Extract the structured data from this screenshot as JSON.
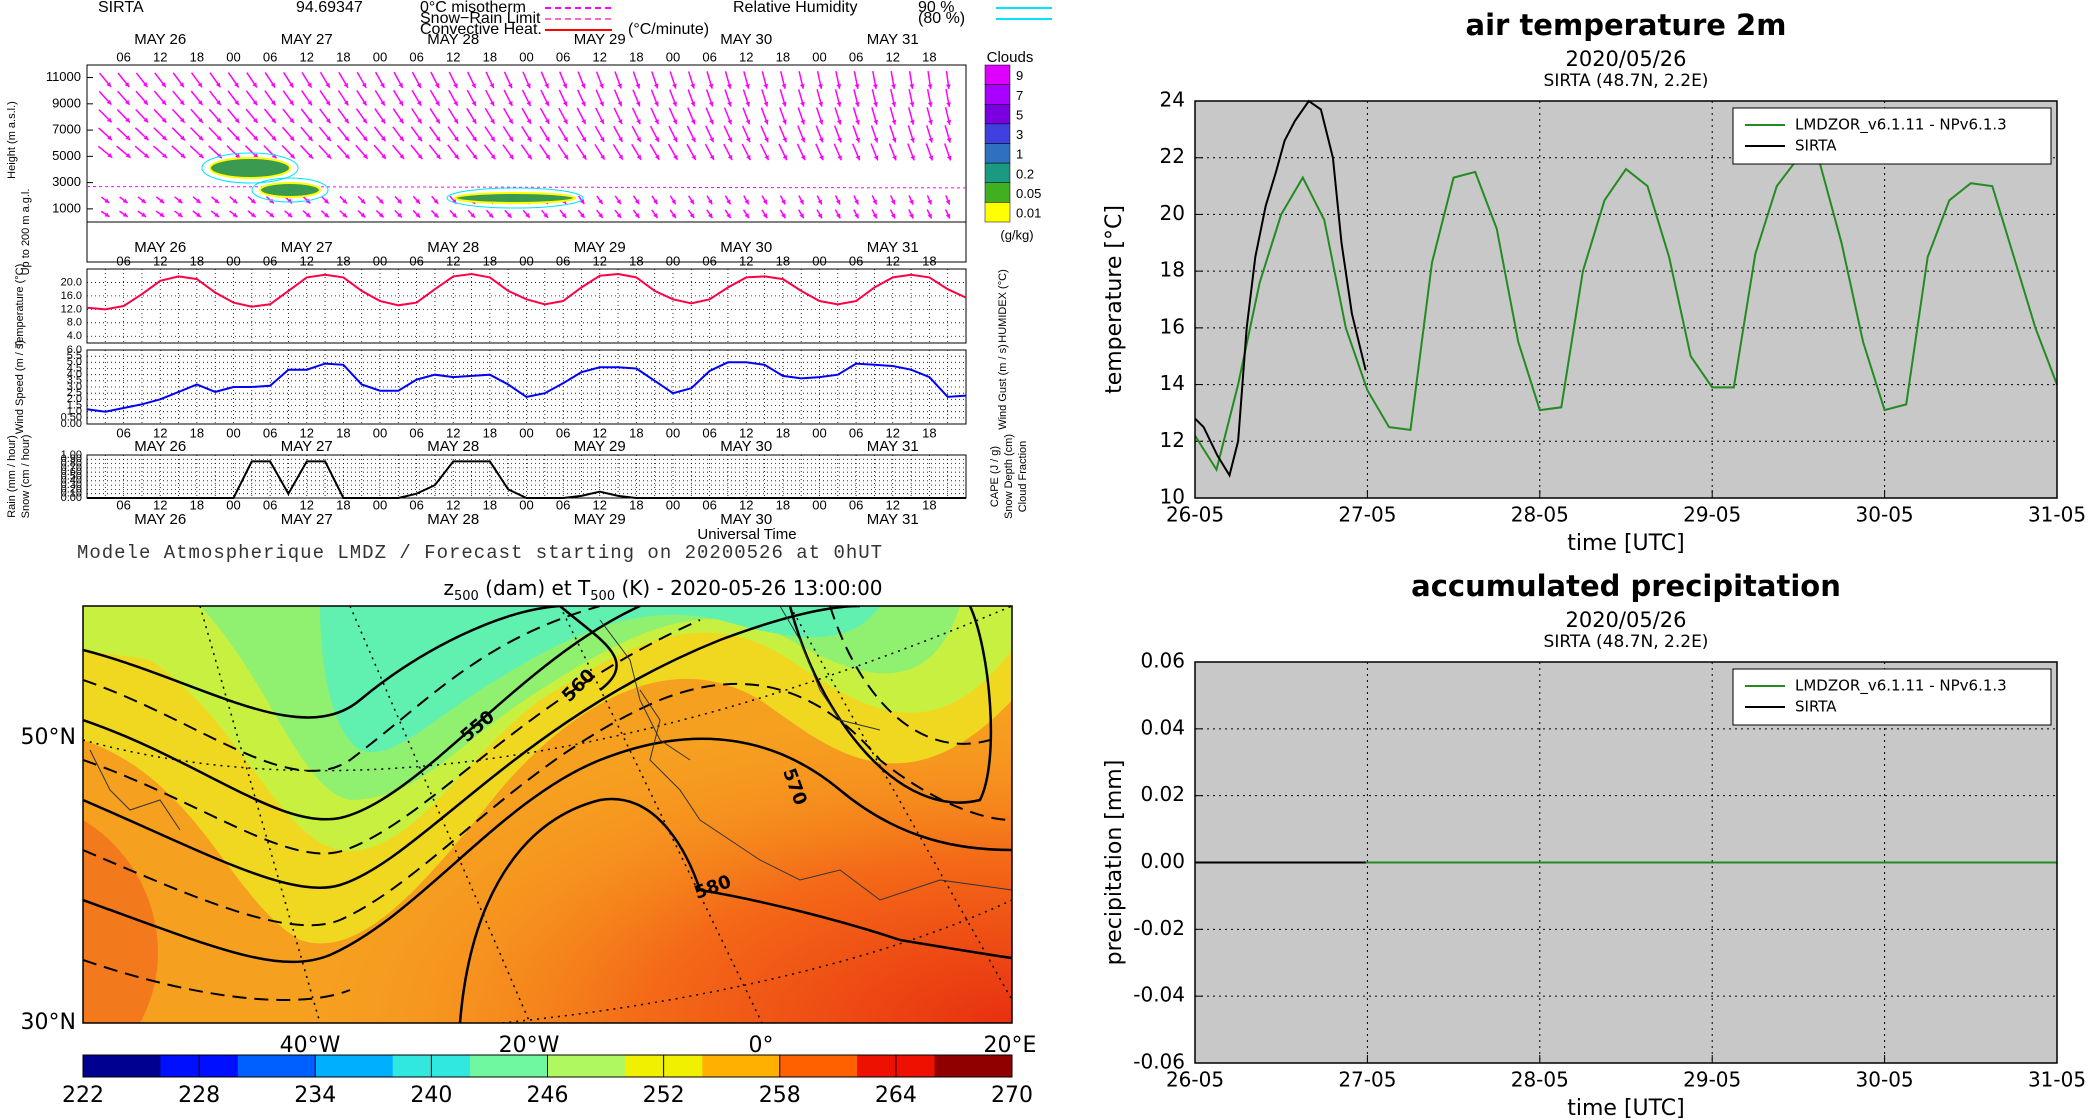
{
  "chart_data": [
    {
      "type": "meteogram",
      "station": "SIRTA",
      "station_value": "94.69347",
      "legend": [
        {
          "name": "0°C misotherm",
          "color": "#ff00ff"
        },
        {
          "name": "Snow−Rain Limit",
          "color": "#ff66cc"
        },
        {
          "name": "Convective Heat.",
          "color": "#ff0000",
          "unit": "(°C/minute)"
        }
      ],
      "humidity_legend": {
        "name": "Relative Humidity",
        "color": "#00e5ff",
        "levels": [
          "90 %",
          "(80 %)"
        ]
      },
      "days": [
        "MAY 26",
        "MAY 27",
        "MAY 28",
        "MAY 29",
        "MAY 30",
        "MAY 31"
      ],
      "hours": [
        "06",
        "12",
        "18",
        "00"
      ],
      "height_panel": {
        "left_labels": [
          {
            "text": "Height (m a.s.l.)",
            "color": "#000"
          },
          {
            "text": "Up to 200 m a.g.l.",
            "color": "#000"
          }
        ],
        "ylim": [
          0,
          11500
        ],
        "yticks": [
          1000,
          3000,
          5000,
          7000,
          9000,
          11000
        ]
      },
      "cloud_scale": {
        "title": "Clouds",
        "labels": [
          "9",
          "7",
          "5",
          "3",
          "1",
          "0.2",
          "0.05",
          "0.01"
        ],
        "colors": [
          "#dd00ff",
          "#aa00ff",
          "#7a00e0",
          "#4040e0",
          "#3070c0",
          "#1a9a80",
          "#40b020",
          "#ffff00"
        ],
        "unit": "(g/kg)"
      },
      "temperature_panel": {
        "left_labels": [
          {
            "text": "Temperature (°C)",
            "color": "#ff0000"
          }
        ],
        "right_labels": [
          {
            "text": "HUMIDEX (°C)",
            "color": "#ff00ff"
          }
        ],
        "ylim": [
          2,
          24
        ],
        "yticks": [
          {
            "value": 4,
            "label": "4.0"
          },
          {
            "value": 8,
            "label": "8.0"
          },
          {
            "value": 12,
            "label": "12.0"
          },
          {
            "value": 16,
            "label": "16.0"
          },
          {
            "value": 20,
            "label": "20.0"
          }
        ],
        "series": [
          {
            "color": "#ff0044",
            "values": [
              12.5,
              12.0,
              13,
              16.5,
              20.5,
              21.8,
              21,
              17,
              14,
              12.8,
              13.5,
              17.5,
              21.5,
              22.3,
              21.5,
              17.5,
              14.5,
              13.2,
              14,
              18,
              21.8,
              22.5,
              21.5,
              17.5,
              15,
              13.5,
              14.5,
              18.5,
              22,
              22.5,
              21.5,
              17.5,
              15,
              13.8,
              15,
              18.5,
              21.5,
              21.8,
              21,
              17.5,
              14.5,
              13.5,
              14.5,
              18.5,
              21.5,
              22.3,
              21.5,
              18,
              15.5
            ]
          }
        ]
      },
      "wind_panel": {
        "left_labels": [
          {
            "text": "Wind Speed (m / s)",
            "color": "#0000ff"
          }
        ],
        "right_labels": [
          {
            "text": "Wind Gust (m / s)",
            "color": "#ff00ff"
          }
        ],
        "ylim": [
          0,
          6
        ],
        "yticks": [
          {
            "value": 0,
            "label": "0.00"
          },
          {
            "value": 0.5,
            "label": "0.50"
          },
          {
            "value": 1,
            "label": "1.0"
          },
          1.5,
          {
            "value": 2,
            "label": "2.0"
          },
          2.5,
          {
            "value": 3,
            "label": "3.0"
          },
          3.5,
          {
            "value": 4,
            "label": "4.0"
          },
          4.5,
          {
            "value": 5,
            "label": "5.0"
          },
          5.5,
          {
            "value": 6,
            "label": "6.0"
          }
        ],
        "series": [
          {
            "color": "#0000ff",
            "values": [
              1.2,
              1.0,
              1.3,
              1.6,
              2.0,
              2.6,
              3.2,
              2.6,
              3.0,
              3.0,
              3.1,
              4.4,
              4.4,
              4.9,
              4.8,
              3.2,
              2.7,
              2.7,
              3.6,
              4.0,
              3.8,
              3.9,
              4.0,
              3.2,
              2.2,
              2.5,
              3.3,
              4.2,
              4.6,
              4.6,
              4.5,
              3.5,
              2.5,
              2.9,
              4.3,
              5.0,
              5.0,
              4.8,
              3.9,
              3.7,
              3.8,
              4.0,
              4.9,
              4.8,
              4.7,
              4.4,
              3.8,
              2.2,
              2.3
            ]
          }
        ]
      },
      "precip_panel": {
        "left_labels": [
          {
            "text": "Rain (mm / hour)",
            "color": "#00c000"
          },
          {
            "text": "Snow (cm / hour)",
            "color": "#0000ff"
          }
        ],
        "right_labels": [
          {
            "text": "CAPE (J / g)",
            "color": "#ff0000"
          },
          {
            "text": "Snow Depth (cm)",
            "color": "#0000ff"
          },
          {
            "text": "Cloud Fraction",
            "color": "#000000"
          }
        ],
        "ylim": [
          0,
          1
        ],
        "yticks": [
          {
            "value": 0,
            "label": "0.00"
          },
          {
            "value": 0.1,
            "label": "0.10"
          },
          {
            "value": 0.2,
            "label": "0.20"
          },
          {
            "value": 0.3,
            "label": "0.30"
          },
          {
            "value": 0.4,
            "label": "0.40"
          },
          {
            "value": 0.5,
            "label": "0.50"
          },
          {
            "value": 0.6,
            "label": "0.60"
          },
          {
            "value": 0.7,
            "label": "0.70"
          },
          {
            "value": 0.8,
            "label": "0.80"
          },
          {
            "value": 0.9,
            "label": "0.90"
          },
          {
            "value": 1,
            "label": "1.00"
          }
        ],
        "series": [
          {
            "color": "#000000",
            "values": [
              0,
              0,
              0,
              0,
              0,
              0,
              0,
              0,
              0,
              0.85,
              0.85,
              0.1,
              0.85,
              0.85,
              0,
              0,
              0,
              0,
              0.1,
              0.3,
              0.85,
              0.85,
              0.85,
              0.2,
              0,
              0,
              0,
              0.05,
              0.15,
              0.05,
              0,
              0,
              0,
              0,
              0,
              0,
              0,
              0,
              0,
              0,
              0,
              0,
              0,
              0,
              0,
              0,
              0,
              0,
              0
            ]
          }
        ]
      },
      "xlabel": "Universal Time",
      "footer": "Modele Atmospherique LMDZ / Forecast starting on 20200526 at 0hUT"
    },
    {
      "type": "map",
      "title_parts": [
        {
          "text": "z",
          "sub": false
        },
        {
          "text": "500",
          "sub": true
        },
        {
          "text": " (dam) et T",
          "sub": false
        },
        {
          "text": "500",
          "sub": true
        },
        {
          "text": " (K) - 2020-05-26 13:00:00",
          "sub": false
        }
      ],
      "lat_labels": [
        "50°N",
        "30°N"
      ],
      "lon_labels": [
        "40°W",
        "20°W",
        "0°",
        "20°E"
      ],
      "contour_labels": [
        "550",
        "560",
        "570",
        "580"
      ],
      "colorbar": {
        "range": [
          222,
          270
        ],
        "ticks": [
          222,
          228,
          234,
          240,
          246,
          252,
          258,
          264,
          270
        ],
        "colors": [
          "#000090",
          "#0010ff",
          "#0060ff",
          "#00b0ff",
          "#30e8e0",
          "#70f8a0",
          "#b0f860",
          "#f0f000",
          "#ffb000",
          "#ff6000",
          "#ee1000",
          "#900000"
        ]
      }
    },
    {
      "type": "line",
      "title": "air temperature 2m",
      "subtitle": "2020/05/26",
      "station": "SIRTA (48.7N, 2.2E)",
      "xlabel": "time [UTC]",
      "ylabel": "temperature [°C]",
      "background": "#c8c8c8",
      "grid": true,
      "legend": "upper right",
      "xlim": [
        0,
        5
      ],
      "xticks": [
        {
          "value": 0,
          "label": "26-05"
        },
        {
          "value": 1,
          "label": "27-05"
        },
        {
          "value": 2,
          "label": "28-05"
        },
        {
          "value": 3,
          "label": "29-05"
        },
        {
          "value": 4,
          "label": "30-05"
        },
        {
          "value": 5,
          "label": "31-05"
        }
      ],
      "ylim": [
        10,
        24
      ],
      "yticks": [
        10,
        12,
        14,
        16,
        18,
        20,
        22,
        24
      ],
      "series": [
        {
          "name": "LMDZOR_v6.1.11 - NPv6.1.3",
          "color": "#228b22",
          "x": [
            0,
            0.125,
            0.25,
            0.375,
            0.5,
            0.625,
            0.75,
            0.875,
            1,
            1.125,
            1.25,
            1.375,
            1.5,
            1.625,
            1.75,
            1.875,
            2,
            2.125,
            2.25,
            2.375,
            2.5,
            2.625,
            2.75,
            2.875,
            3,
            3.125,
            3.25,
            3.375,
            3.5,
            3.625,
            3.75,
            3.875,
            4,
            4.125,
            4.25,
            4.375,
            4.5,
            4.625,
            4.75,
            4.875,
            5
          ],
          "values": [
            12.2,
            11.0,
            14.0,
            17.6,
            20.0,
            21.3,
            19.8,
            16.0,
            13.8,
            12.5,
            12.4,
            18.3,
            21.3,
            21.5,
            19.5,
            15.5,
            13.1,
            13.2,
            18.0,
            20.5,
            21.6,
            21.0,
            18.5,
            15.0,
            13.9,
            13.9,
            18.6,
            21.0,
            22.0,
            21.8,
            19.0,
            15.5,
            13.1,
            13.3,
            18.5,
            20.5,
            21.1,
            21.0,
            18.5,
            16.0,
            14.0
          ]
        },
        {
          "name": "SIRTA",
          "color": "#000000",
          "x": [
            0,
            0.05,
            0.13,
            0.2,
            0.25,
            0.3,
            0.35,
            0.41,
            0.47,
            0.52,
            0.58,
            0.66,
            0.73,
            0.8,
            0.85,
            0.91,
            0.99
          ],
          "values": [
            12.8,
            12.5,
            11.5,
            10.8,
            12.0,
            16.0,
            18.5,
            20.3,
            21.5,
            22.6,
            23.3,
            24.0,
            23.7,
            22.0,
            19.0,
            16.5,
            14.5
          ]
        }
      ]
    },
    {
      "type": "line",
      "title": "accumulated precipitation",
      "subtitle": "2020/05/26",
      "station": "SIRTA (48.7N, 2.2E)",
      "xlabel": "time [UTC]",
      "ylabel": "precipitation [mm]",
      "background": "#c8c8c8",
      "grid": true,
      "legend": "upper right",
      "xlim": [
        0,
        5
      ],
      "xticks": [
        {
          "value": 0,
          "label": "26-05"
        },
        {
          "value": 1,
          "label": "27-05"
        },
        {
          "value": 2,
          "label": "28-05"
        },
        {
          "value": 3,
          "label": "29-05"
        },
        {
          "value": 4,
          "label": "30-05"
        },
        {
          "value": 5,
          "label": "31-05"
        }
      ],
      "ylim": [
        -0.06,
        0.06
      ],
      "yticks": [
        -0.06,
        -0.04,
        -0.02,
        {
          "value": 0,
          "label": "0.00"
        },
        0.02,
        0.04,
        0.06
      ],
      "series": [
        {
          "name": "LMDZOR_v6.1.11 - NPv6.1.3",
          "color": "#228b22",
          "x": [
            0,
            1,
            2,
            3,
            4,
            5
          ],
          "values": [
            0,
            0,
            0,
            0,
            0,
            0
          ]
        },
        {
          "name": "SIRTA",
          "color": "#000000",
          "x": [
            0,
            0.99
          ],
          "values": [
            0,
            0
          ]
        }
      ]
    }
  ]
}
